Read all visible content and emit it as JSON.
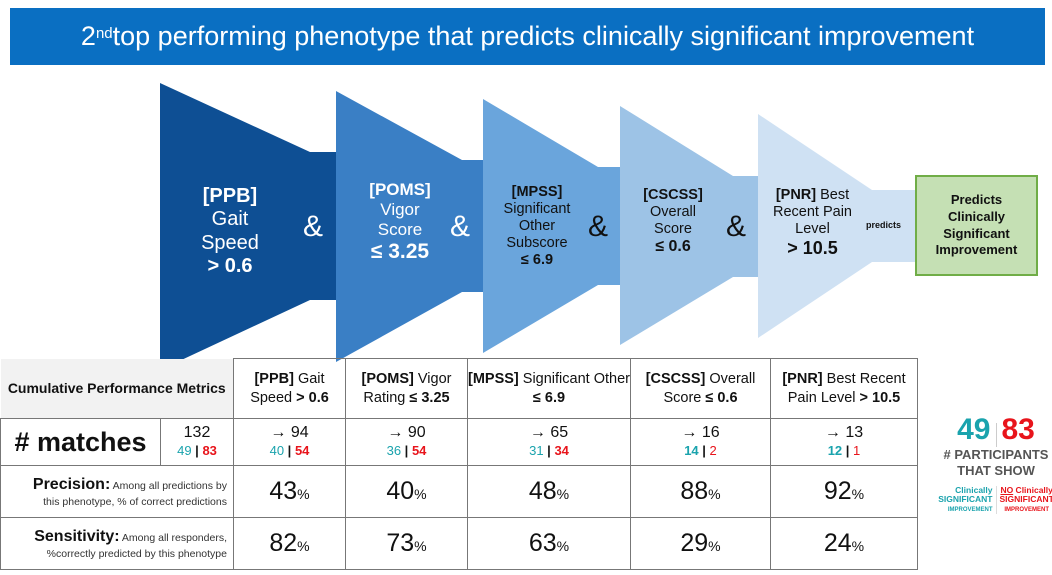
{
  "title": {
    "prefix": "2",
    "sup": "nd",
    "rest": " top performing phenotype that predicts clinically significant improvement"
  },
  "funnel": [
    {
      "tag": "[PPB]",
      "line1": "Gait",
      "line2": "Speed",
      "cond": "> 0.6"
    },
    {
      "tag": "[POMS]",
      "line1": "Vigor",
      "line2": "Score",
      "cond": "≤ 3.25"
    },
    {
      "tag": "[MPSS]",
      "line1": "Significant",
      "line2": "Other",
      "line3": "Subscore",
      "cond": "≤ 6.9"
    },
    {
      "tag": "[CSCSS]",
      "line1": "Overall",
      "line2": "Score",
      "cond": "≤ 0.6"
    },
    {
      "tag": "[PNR]",
      "line1": "Best",
      "line2": "Recent Pain",
      "line3": "Level",
      "cond": "> 10.5"
    }
  ],
  "amp": "&",
  "predicts": "predicts",
  "outcome": "Predicts Clinically Significant Improvement",
  "colors": {
    "title": "#0a6fc2",
    "teal": "#1aa3ad",
    "red": "#e8141b",
    "green": "#c5e0b4"
  },
  "table": {
    "corner": "Cumulative Performance Metrics",
    "headers": [
      {
        "tag": "[PPB]",
        "text": " Gait Speed ",
        "cond": "> 0.6"
      },
      {
        "tag": "[POMS]",
        "text": " Vigor Rating ",
        "cond": "≤ 3.25"
      },
      {
        "tag": "[MPSS]",
        "text": " Significant Other ",
        "cond": "≤ 6.9"
      },
      {
        "tag": "[CSCSS]",
        "text": " Overall Score ",
        "cond": "≤ 0.6"
      },
      {
        "tag": "[PNR]",
        "text": " Best Recent Pain Level ",
        "cond": "> 10.5"
      }
    ],
    "matches_label": "# matches",
    "matches_total": {
      "total": "132",
      "yes": "49",
      "no": "83"
    },
    "matches": [
      {
        "total": "→ 94",
        "yes": "40",
        "no": "54"
      },
      {
        "total": "→ 90",
        "yes": "36",
        "no": "54"
      },
      {
        "total": "→ 65",
        "yes": "31",
        "no": "34"
      },
      {
        "total": "→ 16",
        "yes": "14",
        "no": "2"
      },
      {
        "total": "→ 13",
        "yes": "12",
        "no": "1"
      }
    ],
    "precision": {
      "label": "Precision:",
      "desc1": " Among all predictions by",
      "desc2": "this phenotype, % of correct predictions",
      "values": [
        "43",
        "40",
        "48",
        "88",
        "92"
      ]
    },
    "sensitivity": {
      "label": "Sensitivity:",
      "desc1": " Among all responders,",
      "desc2": "%correctly predicted by this phenotype",
      "values": [
        "82",
        "73",
        "63",
        "29",
        "24"
      ]
    },
    "pct": "%"
  },
  "legend": {
    "yes": "49",
    "no": "83",
    "caption1": "# PARTICIPANTS",
    "caption2": "THAT SHOW",
    "yes_label": {
      "a": "Clinically",
      "b": "SIGNIFICANT",
      "c": "IMPROVEMENT"
    },
    "no_label": {
      "a1": "NO",
      "a2": " Clinically",
      "b": "SIGNIFICANT",
      "c": "IMPROVEMENT"
    }
  }
}
